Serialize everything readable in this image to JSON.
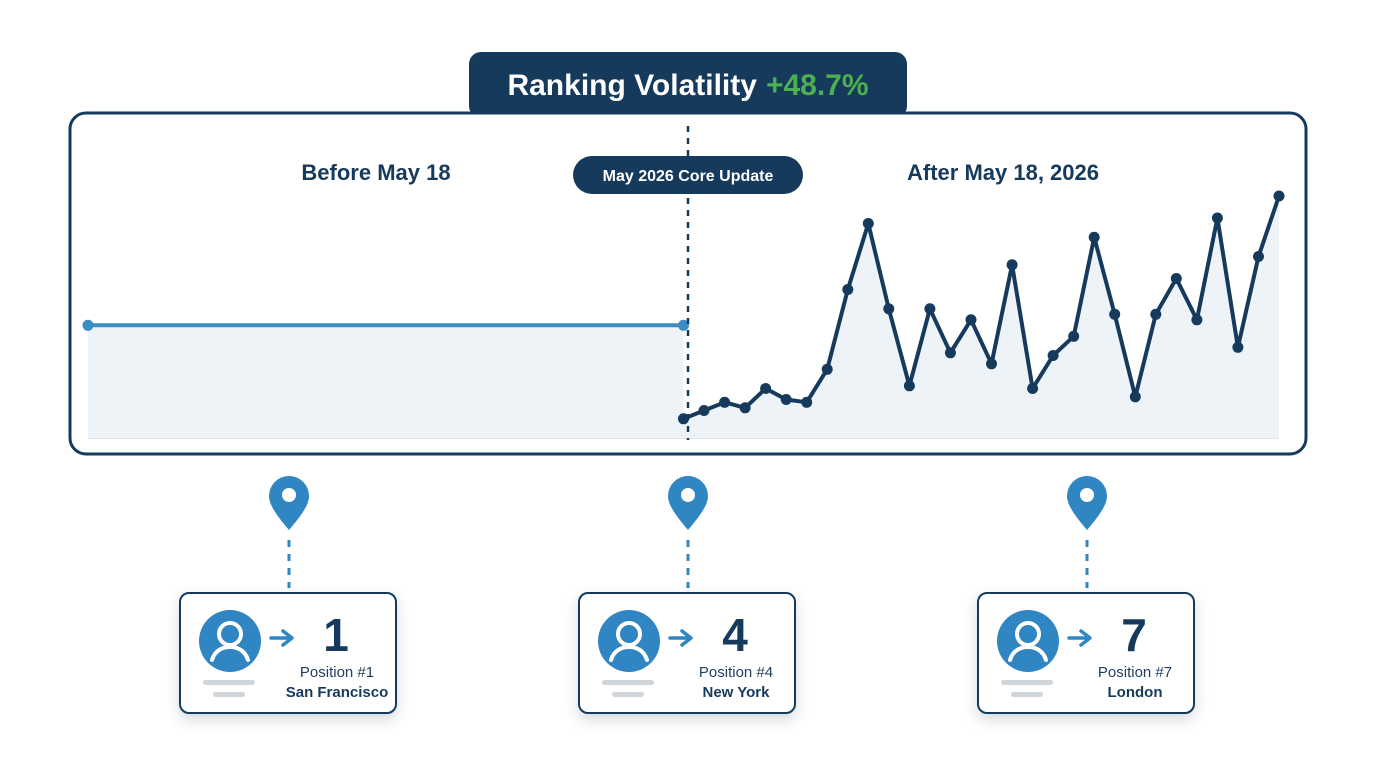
{
  "title": {
    "label": "Ranking Volatility",
    "change": "+48.7%"
  },
  "chart_data": {
    "type": "line",
    "annotation": "May 2026 Core Update",
    "before_label": "Before May 18",
    "after_label": "After May 18, 2026",
    "ylim": [
      0,
      100
    ],
    "before_series": {
      "x": [
        0,
        29
      ],
      "values": [
        41,
        41
      ]
    },
    "after_series": {
      "x": [
        29,
        30,
        31,
        32,
        33,
        34,
        35,
        36,
        37,
        38,
        39,
        40,
        41,
        42,
        43,
        44,
        45,
        46,
        47,
        48,
        49,
        50,
        51,
        52,
        53,
        54,
        55,
        56,
        57,
        58
      ],
      "values": [
        7,
        10,
        13,
        11,
        18,
        14,
        13,
        25,
        54,
        78,
        47,
        19,
        47,
        31,
        43,
        27,
        63,
        18,
        30,
        37,
        73,
        45,
        15,
        45,
        58,
        43,
        80,
        33,
        66,
        88
      ]
    },
    "grid": false,
    "legend": "none"
  },
  "locations": [
    {
      "position_number": "1",
      "position_label": "Position #1",
      "city": "San Francisco"
    },
    {
      "position_number": "4",
      "position_label": "Position #4",
      "city": "New York"
    },
    {
      "position_number": "7",
      "position_label": "Position #7",
      "city": "London"
    }
  ],
  "colors": {
    "navy": "#163a5c",
    "blue": "#3a8dc4",
    "green": "#4caf50",
    "area_fill": "#eef3f8",
    "pin": "#2f86c2"
  },
  "icons": [
    "location-pin-icon",
    "user-avatar-icon",
    "arrow-right-icon"
  ]
}
